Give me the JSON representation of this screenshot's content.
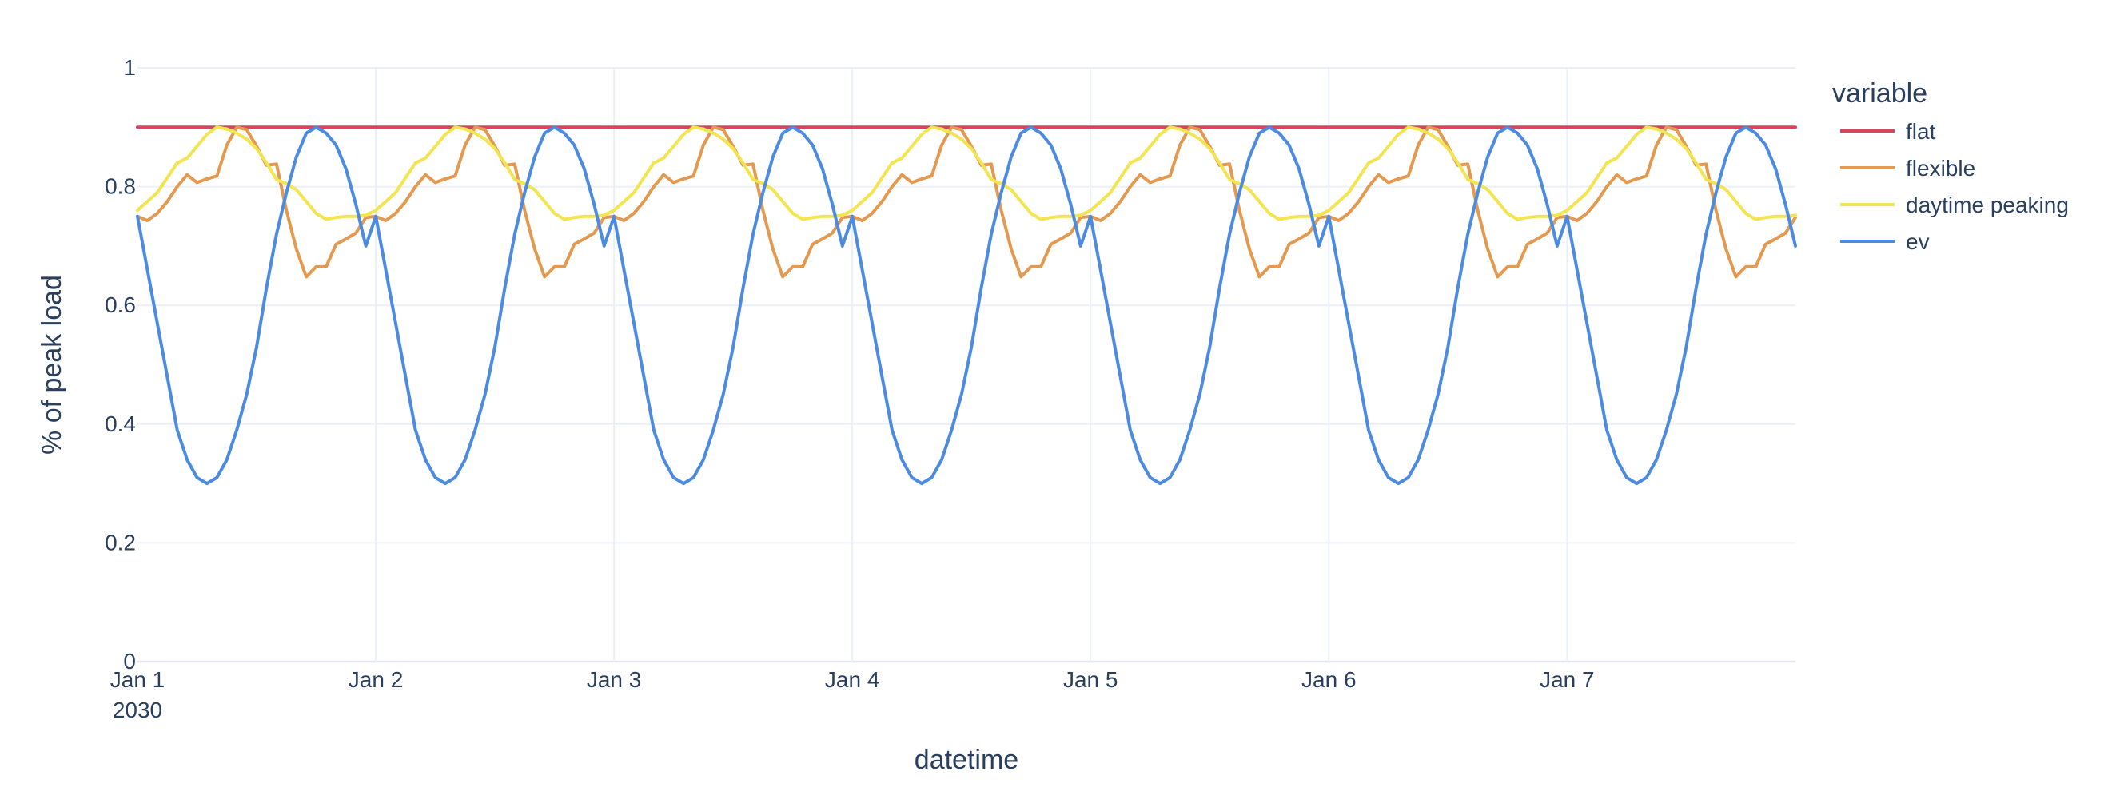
{
  "chart_data": {
    "type": "line",
    "title": "",
    "xlabel": "datetime",
    "ylabel": "% of peak load",
    "ylim": [
      0,
      1
    ],
    "xlim": [
      "2030-01-01 00:00",
      "2030-01-07 23:00"
    ],
    "grid": true,
    "legend_position": "top-right",
    "legend_title": "variable",
    "y_ticks": [
      "0",
      "0.2",
      "0.4",
      "0.6",
      "0.8",
      "1"
    ],
    "x_ticks": [
      {
        "label": "Jan 1",
        "sublabel": "2030",
        "date": "2030-01-01 00:00"
      },
      {
        "label": "Jan 2",
        "date": "2030-01-02 00:00"
      },
      {
        "label": "Jan 3",
        "date": "2030-01-03 00:00"
      },
      {
        "label": "Jan 4",
        "date": "2030-01-04 00:00"
      },
      {
        "label": "Jan 5",
        "date": "2030-01-05 00:00"
      },
      {
        "label": "Jan 6",
        "date": "2030-01-06 00:00"
      },
      {
        "label": "Jan 7",
        "date": "2030-01-07 00:00"
      }
    ],
    "x_frequency": "hourly",
    "series": [
      {
        "name": "flat",
        "color": "#d6475e",
        "daily_profile": [
          0.9,
          0.9,
          0.9,
          0.9,
          0.9,
          0.9,
          0.9,
          0.9,
          0.9,
          0.9,
          0.9,
          0.9,
          0.9,
          0.9,
          0.9,
          0.9,
          0.9,
          0.9,
          0.9,
          0.9,
          0.9,
          0.9,
          0.9,
          0.9
        ]
      },
      {
        "name": "flexible",
        "color": "#e39a50",
        "daily_profile": [
          0.75,
          0.743,
          0.755,
          0.775,
          0.8,
          0.82,
          0.807,
          0.813,
          0.818,
          0.87,
          0.9,
          0.896,
          0.868,
          0.836,
          0.838,
          0.76,
          0.695,
          0.648,
          0.665,
          0.665,
          0.703,
          0.712,
          0.722,
          0.748
        ]
      },
      {
        "name": "daytime peaking",
        "color": "#f3e552",
        "daily_profile": [
          0.76,
          0.775,
          0.79,
          0.815,
          0.84,
          0.848,
          0.868,
          0.888,
          0.9,
          0.897,
          0.89,
          0.88,
          0.864,
          0.84,
          0.812,
          0.805,
          0.795,
          0.775,
          0.755,
          0.745,
          0.748,
          0.75,
          0.75,
          0.752
        ]
      },
      {
        "name": "ev",
        "color": "#4c8be0",
        "daily_profile": [
          0.75,
          0.66,
          0.57,
          0.48,
          0.39,
          0.34,
          0.31,
          0.3,
          0.31,
          0.34,
          0.39,
          0.45,
          0.53,
          0.63,
          0.72,
          0.79,
          0.85,
          0.89,
          0.9,
          0.89,
          0.87,
          0.83,
          0.77,
          0.7
        ]
      }
    ]
  }
}
